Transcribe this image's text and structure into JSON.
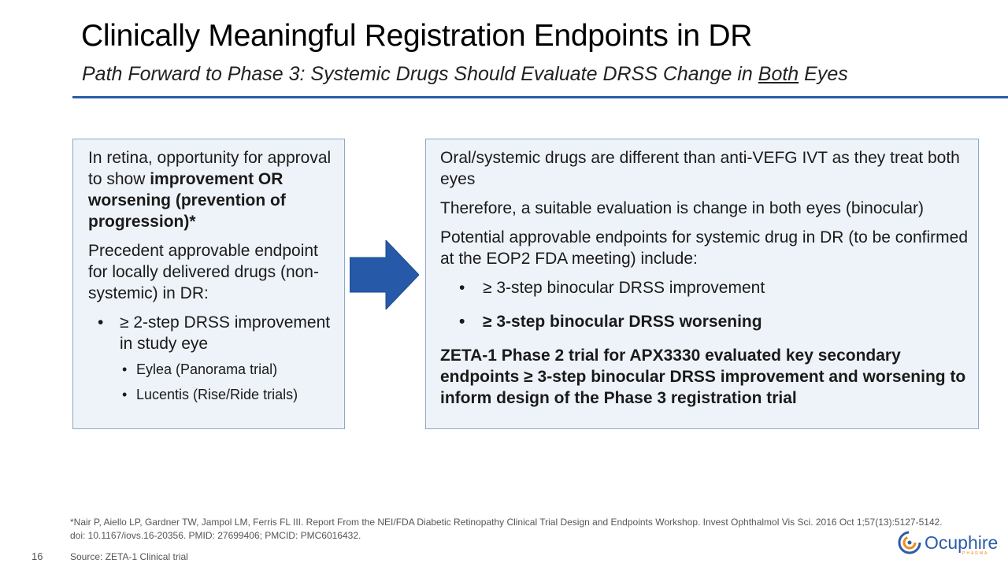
{
  "header": {
    "title": "Clinically Meaningful Registration Endpoints in DR",
    "subtitle_before": "Path Forward to Phase 3: Systemic Drugs Should Evaluate DRSS Change in ",
    "subtitle_underlined": "Both",
    "subtitle_after": " Eyes"
  },
  "left_box": {
    "para1_text": "In retina, opportunity for approval to show ",
    "para1_bold": "improvement OR worsening (prevention of progression)*",
    "para2": "Precedent approvable endpoint for locally delivered drugs (non-systemic) in DR:",
    "bullet": "≥ 2-step DRSS improvement in study eye",
    "sub_bullets": [
      "Eylea (Panorama trial)",
      "Lucentis (Rise/Ride trials)"
    ],
    "bullet_symbol": "•"
  },
  "right_box": {
    "para1": "Oral/systemic drugs are different than anti-VEFG IVT as they treat both eyes",
    "para2": "Therefore, a suitable evaluation is change in both eyes (binocular)",
    "para3": "Potential approvable endpoints for systemic drug in DR (to be confirmed at the EOP2 FDA meeting) include:",
    "bullet1": "≥ 3-step binocular DRSS improvement",
    "bullet2": "≥ 3-step binocular DRSS worsening",
    "para4": "ZETA-1 Phase 2 trial for APX3330 evaluated key secondary endpoints ≥ 3-step binocular DRSS improvement and worsening to inform design of the Phase 3 registration trial"
  },
  "footer": {
    "footnote": "*Nair P, Aiello LP, Gardner TW, Jampol LM, Ferris FL III. Report From the NEI/FDA Diabetic Retinopathy Clinical Trial Design and Endpoints Workshop. Invest Ophthalmol Vis Sci. 2016 Oct 1;57(13):5127-5142.  doi: 10.1167/iovs.16-20356.  PMID: 27699406; PMCID: PMC6016432.",
    "page_number": "16",
    "source": "Source: ZETA-1 Clinical trial",
    "logo_text": "Ocuphire",
    "logo_subtext": "PHARMA"
  },
  "colors": {
    "accent": "#2a5ca8",
    "box_bg": "#eef3f9",
    "box_border": "#8fa9c8",
    "arrow": "#2659a8",
    "logo_orange": "#f08a1c"
  }
}
